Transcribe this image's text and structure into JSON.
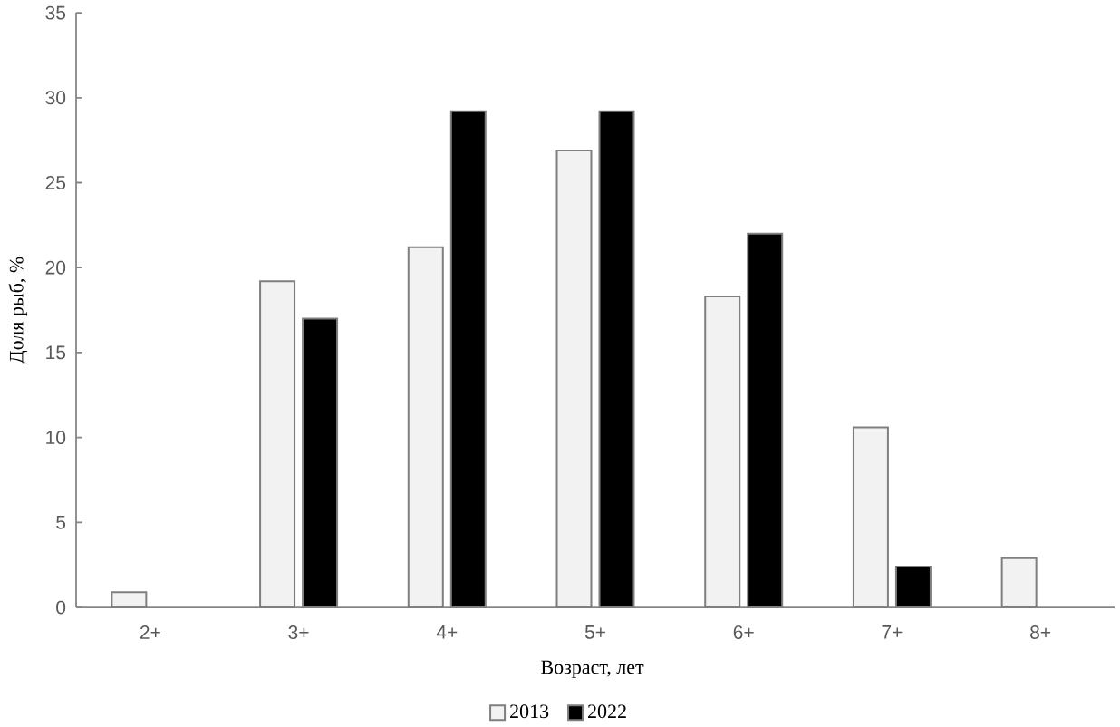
{
  "chart_data": {
    "type": "bar",
    "xlabel": "Возраст, лет",
    "ylabel": "Доля рыб, %",
    "categories": [
      "2+",
      "3+",
      "4+",
      "5+",
      "6+",
      "7+",
      "8+"
    ],
    "series": [
      {
        "name": "2013",
        "color": "#f2f2f2",
        "values": [
          0.9,
          19.2,
          21.2,
          26.9,
          18.3,
          10.6,
          2.9
        ]
      },
      {
        "name": "2022",
        "color": "#000000",
        "values": [
          null,
          17.0,
          29.2,
          29.2,
          22.0,
          2.4,
          null
        ]
      }
    ],
    "ylim": [
      0,
      35
    ],
    "yticks": [
      0,
      5,
      10,
      15,
      20,
      25,
      30,
      35
    ],
    "legend": "bottom"
  }
}
